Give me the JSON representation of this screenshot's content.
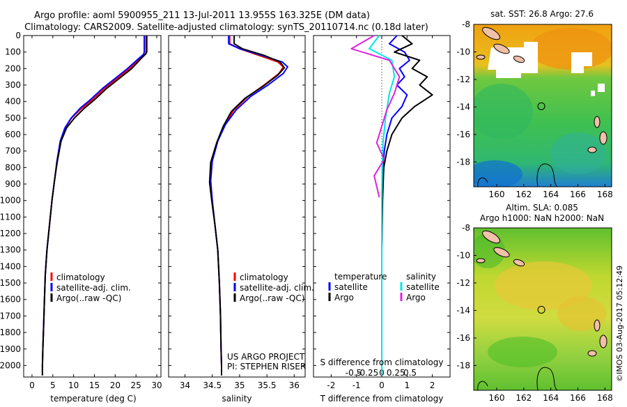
{
  "header": {
    "title_line1": "Argo profile: aoml 5900955_211 13-Jul-2011 13.955S 163.325E (DM data)",
    "title_line2": "Climatology: CARS2009. Satellite-adjusted climatology: synTS_20110714.nc (0.18d later)"
  },
  "colors": {
    "climatology": "#ff0000",
    "satellite": "#0000ff",
    "argo": "#000000",
    "salinity_satellite": "#00e5e5",
    "salinity_argo": "#e020e0"
  },
  "chart_data": [
    {
      "id": "temperature",
      "type": "line",
      "xlabel": "temperature (deg C)",
      "ylabel": "",
      "xlim": [
        -2,
        31
      ],
      "ylim": [
        0,
        2070
      ],
      "yreversed": true,
      "xticks": [
        0,
        5,
        10,
        15,
        20,
        25,
        30
      ],
      "xtick_labels": [
        "0",
        "5",
        "10",
        "15",
        "20",
        "25",
        "30"
      ],
      "yticks": [
        0,
        100,
        200,
        300,
        400,
        500,
        600,
        700,
        800,
        900,
        1000,
        1100,
        1200,
        1300,
        1400,
        1500,
        1600,
        1700,
        1800,
        1900,
        2000
      ],
      "ytick_labels": [
        "0",
        "100",
        "200",
        "300",
        "400",
        "500",
        "600",
        "700",
        "800",
        "900",
        "1000",
        "1100",
        "1200",
        "1300",
        "1400",
        "1500",
        "1600",
        "1700",
        "1800",
        "1900",
        "2000"
      ],
      "legend": [
        "climatology",
        "satellite-adj. clim.",
        "Argo(..raw -QC)"
      ],
      "series": [
        {
          "name": "climatology",
          "color_key": "climatology",
          "x": [
            27.4,
            27.4,
            27.2,
            26.0,
            23.5,
            20.5,
            17.5,
            14.5,
            12.0,
            9.5,
            8.0,
            6.8,
            6.0,
            5.4,
            4.8,
            4.4,
            4.0,
            3.6,
            3.2,
            3.0,
            2.8,
            2.6,
            2.5,
            2.5
          ],
          "y": [
            0,
            100,
            115,
            140,
            200,
            260,
            320,
            390,
            440,
            500,
            560,
            640,
            760,
            880,
            1000,
            1100,
            1200,
            1300,
            1450,
            1600,
            1750,
            1900,
            2000,
            2060
          ]
        },
        {
          "name": "satellite-adj. clim.",
          "color_key": "satellite",
          "x": [
            27.0,
            27.0,
            26.8,
            25.6,
            23.0,
            20.0,
            17.0,
            14.0,
            11.6,
            9.4,
            7.9,
            6.8,
            6.0,
            5.4,
            4.8,
            4.4,
            4.0,
            3.6,
            3.2,
            3.0,
            2.8,
            2.6,
            2.5,
            2.5
          ],
          "y": [
            0,
            100,
            115,
            140,
            200,
            260,
            320,
            390,
            440,
            500,
            560,
            640,
            760,
            880,
            1000,
            1100,
            1200,
            1300,
            1450,
            1600,
            1750,
            1900,
            2000,
            2060
          ]
        },
        {
          "name": "Argo(..raw -QC)",
          "color_key": "argo",
          "x": [
            27.6,
            27.6,
            27.4,
            26.4,
            24.0,
            21.0,
            18.0,
            15.0,
            12.6,
            10.2,
            8.3,
            7.0,
            6.1,
            5.4,
            4.8,
            4.4,
            4.0,
            3.6,
            3.2,
            3.0,
            2.8,
            2.6,
            2.5,
            2.5
          ],
          "y": [
            0,
            100,
            110,
            135,
            200,
            260,
            320,
            390,
            440,
            500,
            560,
            640,
            760,
            880,
            1000,
            1100,
            1200,
            1300,
            1450,
            1600,
            1750,
            1900,
            2000,
            2060
          ]
        }
      ]
    },
    {
      "id": "salinity",
      "type": "line",
      "xlabel": "salinity",
      "xlim": [
        33.7,
        36.2
      ],
      "ylim": [
        0,
        2070
      ],
      "yreversed": true,
      "xticks": [
        34,
        34.5,
        35,
        35.5,
        36
      ],
      "xtick_labels": [
        "34",
        "34.5",
        "35",
        "35.5",
        "36"
      ],
      "legend": [
        "climatology",
        "satellite-adj. clim.",
        "Argo(..raw -QC)"
      ],
      "annotation_line1": "US ARGO PROJECT",
      "annotation_line2": "PI: STEPHEN RISER",
      "series": [
        {
          "name": "climatology",
          "color_key": "climatology",
          "x": [
            34.82,
            34.82,
            35.0,
            35.35,
            35.7,
            35.8,
            35.72,
            35.45,
            35.15,
            34.9,
            34.72,
            34.6,
            34.5,
            34.47,
            34.5,
            34.55,
            34.6,
            34.63,
            34.65,
            34.66,
            34.67,
            34.67
          ],
          "y": [
            0,
            50,
            80,
            120,
            160,
            190,
            230,
            300,
            370,
            450,
            540,
            640,
            760,
            880,
            1000,
            1150,
            1300,
            1500,
            1700,
            1900,
            2000,
            2060
          ]
        },
        {
          "name": "satellite-adj. clim.",
          "color_key": "satellite",
          "x": [
            34.8,
            34.8,
            35.0,
            35.4,
            35.78,
            35.88,
            35.8,
            35.52,
            35.2,
            34.94,
            34.74,
            34.6,
            34.5,
            34.47,
            34.5,
            34.55,
            34.6,
            34.63,
            34.65,
            34.66,
            34.67,
            34.67
          ],
          "y": [
            0,
            50,
            80,
            120,
            160,
            190,
            230,
            300,
            370,
            450,
            540,
            640,
            760,
            880,
            1000,
            1150,
            1300,
            1500,
            1700,
            1900,
            2000,
            2060
          ]
        },
        {
          "name": "Argo(..raw -QC)",
          "color_key": "argo",
          "x": [
            34.9,
            34.9,
            35.05,
            35.45,
            35.74,
            35.82,
            35.7,
            35.42,
            35.1,
            34.85,
            34.7,
            34.58,
            34.47,
            34.45,
            34.49,
            34.55,
            34.6,
            34.63,
            34.65,
            34.66,
            34.67,
            34.67
          ],
          "y": [
            0,
            50,
            80,
            120,
            160,
            195,
            240,
            310,
            380,
            460,
            550,
            650,
            770,
            890,
            1000,
            1150,
            1300,
            1500,
            1700,
            1900,
            2000,
            2060
          ]
        }
      ]
    },
    {
      "id": "difference",
      "type": "line",
      "xlabel": "T difference from climatology",
      "xlabel2": "S difference from climatology",
      "xlim": [
        -2.7,
        2.7
      ],
      "ylim": [
        0,
        2070
      ],
      "yreversed": true,
      "xticks": [
        -2,
        -1,
        0,
        1,
        2
      ],
      "xtick_labels": [
        "-2",
        "-1",
        "0",
        "1",
        "2"
      ],
      "xticks_top": [
        -0.5,
        -0.25,
        0,
        0.25,
        0.5
      ],
      "xtick_labels_top": [
        "-0.5",
        "-0.25",
        "0",
        "0.25",
        "0.5"
      ],
      "legend_temperature_title": "temperature",
      "legend_salinity_title": "salinity",
      "legend": [
        "satellite",
        "Argo",
        "satellite",
        "Argo"
      ],
      "series": [
        {
          "name": "T satellite",
          "color_key": "satellite",
          "x": [
            0.6,
            0.3,
            0.9,
            1.1,
            0.7,
            0.9,
            0.6,
            1.0,
            0.8,
            0.4,
            0.2,
            0.1,
            0.05,
            0.02,
            0.0,
            0.0,
            0.0
          ],
          "y": [
            0,
            50,
            100,
            150,
            200,
            250,
            300,
            360,
            430,
            500,
            600,
            700,
            800,
            1000,
            1300,
            1700,
            2060
          ]
        },
        {
          "name": "T Argo",
          "color_key": "argo",
          "x": [
            0.8,
            1.2,
            0.5,
            1.5,
            1.2,
            1.8,
            1.5,
            2.0,
            1.3,
            0.8,
            0.4,
            0.2,
            0.08,
            0.03,
            0.0,
            0.0,
            0.0
          ],
          "y": [
            0,
            50,
            100,
            150,
            200,
            250,
            300,
            360,
            430,
            500,
            600,
            700,
            800,
            1000,
            1300,
            1700,
            2060
          ]
        },
        {
          "name": "S satellite",
          "color_key": "salinity_satellite",
          "x": [
            -0.1,
            -0.5,
            0.4,
            0.5,
            0.3,
            0.15,
            0.05,
            0.02,
            0.0,
            0.0,
            0.0
          ],
          "y": [
            0,
            80,
            150,
            250,
            350,
            500,
            650,
            800,
            1000,
            1500,
            2060
          ]
        },
        {
          "name": "S Argo",
          "color_key": "salinity_argo",
          "x": [
            -0.3,
            -1.2,
            0.3,
            0.7,
            0.5,
            0.2,
            0.0,
            -0.2,
            0.1,
            -0.3,
            -0.1
          ],
          "y": [
            0,
            80,
            150,
            250,
            350,
            450,
            550,
            650,
            750,
            850,
            980
          ]
        }
      ]
    },
    {
      "id": "sst_map",
      "type": "heatmap",
      "title": "sat. SST: 26.8  Argo: 27.6",
      "xlim": [
        158.3,
        168.5
      ],
      "ylim": [
        -19.8,
        -8
      ],
      "xticks": [
        160,
        162,
        164,
        166,
        168
      ],
      "xtick_labels": [
        "160",
        "162",
        "164",
        "166",
        "168"
      ],
      "yticks": [
        -8,
        -10,
        -12,
        -14,
        -16,
        -18
      ],
      "ytick_labels": [
        "-8",
        "-10",
        "-12",
        "-14",
        "-16",
        "-18"
      ],
      "float_position": [
        163.3,
        -13.95
      ]
    },
    {
      "id": "sla_map",
      "type": "heatmap",
      "title_line1": "Altim. SLA: 0.085",
      "title_line2": "Argo h1000: NaN h2000: NaN",
      "xlim": [
        158.3,
        168.5
      ],
      "ylim": [
        -19.8,
        -8
      ],
      "xticks": [
        160,
        162,
        164,
        166,
        168
      ],
      "xtick_labels": [
        "160",
        "162",
        "164",
        "166",
        "168"
      ],
      "yticks": [
        -8,
        -10,
        -12,
        -14,
        -16,
        -18
      ],
      "ytick_labels": [
        "-8",
        "-10",
        "-12",
        "-14",
        "-16",
        "-18"
      ],
      "float_position": [
        163.3,
        -13.95
      ]
    }
  ],
  "footer": {
    "credit": "©IMOS 03-Aug-2017 05:12:49"
  }
}
